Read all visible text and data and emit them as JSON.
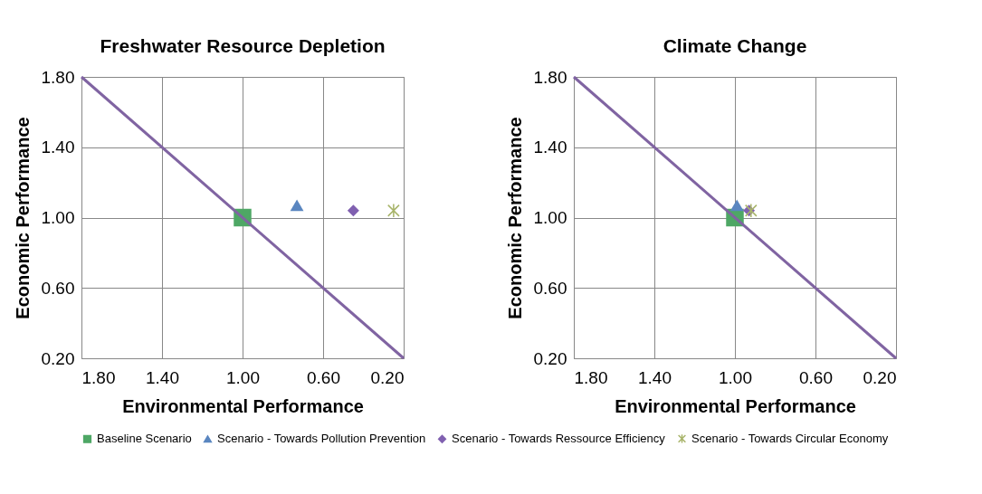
{
  "chart_data": [
    {
      "type": "scatter",
      "title": "Freshwater Resource Depletion",
      "xlabel": "Environmental Performance",
      "ylabel": "Economic Performance",
      "xlim": [
        1.8,
        0.2
      ],
      "ylim": [
        0.2,
        1.8
      ],
      "xticks": [
        {
          "value": 1.8,
          "label": "1.80"
        },
        {
          "value": 1.4,
          "label": "1.40"
        },
        {
          "value": 1.0,
          "label": "1.00"
        },
        {
          "value": 0.6,
          "label": "0.60"
        },
        {
          "value": 0.2,
          "label": "0.20"
        }
      ],
      "yticks": [
        {
          "value": 0.2,
          "label": "0.20"
        },
        {
          "value": 0.6,
          "label": "0.60"
        },
        {
          "value": 1.0,
          "label": "1.00"
        },
        {
          "value": 1.4,
          "label": "1.40"
        },
        {
          "value": 1.8,
          "label": "1.80"
        }
      ],
      "grid": true,
      "legend": "bottom",
      "series": [
        {
          "name": "Baseline Scenario",
          "color": "#4ea765",
          "marker": "square",
          "x": [
            1.0
          ],
          "values": [
            1.0
          ]
        },
        {
          "name": "Scenario - Towards Pollution Prevention",
          "color": "#5a86c0",
          "marker": "triangle",
          "x": [
            0.73
          ],
          "values": [
            1.07
          ]
        },
        {
          "name": "Scenario - Towards Ressource Efficiency",
          "color": "#8060b0",
          "marker": "diamond",
          "x": [
            0.45
          ],
          "values": [
            1.04
          ]
        },
        {
          "name": "Scenario - Towards Circular Economy",
          "color": "#a8b46a",
          "marker": "cross",
          "x": [
            0.25
          ],
          "values": [
            1.04
          ]
        },
        {
          "type": "line",
          "color": "#8064a2",
          "x": [
            1.8,
            0.2
          ],
          "values": [
            1.8,
            0.2
          ]
        }
      ]
    },
    {
      "type": "scatter",
      "title": "Climate Change",
      "xlabel": "Environmental Performance",
      "ylabel": "Economic Performance",
      "xlim": [
        1.8,
        0.2
      ],
      "ylim": [
        0.2,
        1.8
      ],
      "xticks": [
        {
          "value": 1.8,
          "label": "1.80"
        },
        {
          "value": 1.4,
          "label": "1.40"
        },
        {
          "value": 1.0,
          "label": "1.00"
        },
        {
          "value": 0.6,
          "label": "0.60"
        },
        {
          "value": 0.2,
          "label": "0.20"
        }
      ],
      "yticks": [
        {
          "value": 0.2,
          "label": "0.20"
        },
        {
          "value": 0.6,
          "label": "0.60"
        },
        {
          "value": 1.0,
          "label": "1.00"
        },
        {
          "value": 1.4,
          "label": "1.40"
        },
        {
          "value": 1.8,
          "label": "1.80"
        }
      ],
      "grid": true,
      "legend": "bottom",
      "series": [
        {
          "name": "Baseline Scenario",
          "color": "#4ea765",
          "marker": "square",
          "x": [
            1.0
          ],
          "values": [
            1.0
          ]
        },
        {
          "name": "Scenario - Towards Pollution Prevention",
          "color": "#5a86c0",
          "marker": "triangle",
          "x": [
            0.99
          ],
          "values": [
            1.07
          ]
        },
        {
          "name": "Scenario - Towards Ressource Efficiency",
          "color": "#8060b0",
          "marker": "diamond",
          "x": [
            0.93
          ],
          "values": [
            1.04
          ]
        },
        {
          "name": "Scenario - Towards Circular Economy",
          "color": "#a8b46a",
          "marker": "cross",
          "x": [
            0.92
          ],
          "values": [
            1.04
          ]
        },
        {
          "type": "line",
          "color": "#8064a2",
          "x": [
            1.8,
            0.2
          ],
          "values": [
            1.8,
            0.2
          ]
        }
      ]
    }
  ]
}
